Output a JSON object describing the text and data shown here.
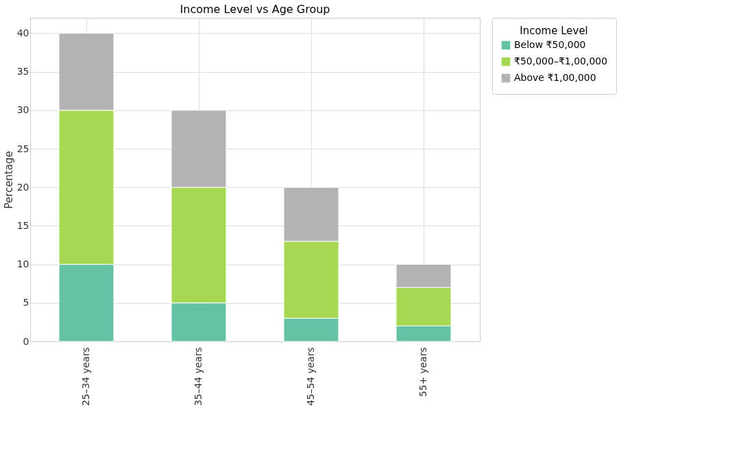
{
  "chart_data": {
    "type": "bar",
    "title": "Income Level vs Age Group",
    "ylabel": "Percentage",
    "legend_title": "Income Level",
    "categories": [
      "25–34 years",
      "35–44 years",
      "45–54 years",
      "55+ years"
    ],
    "stacked": true,
    "series": [
      {
        "name": "Below ₹50,000",
        "color": "#66c2a5",
        "values": [
          10,
          5,
          3,
          2
        ]
      },
      {
        "name": "₹50,000–₹1,00,000",
        "color": "#a6d854",
        "values": [
          20,
          15,
          10,
          5
        ]
      },
      {
        "name": "Above ₹1,00,000",
        "color": "#b3b3b3",
        "values": [
          10,
          10,
          7,
          3
        ]
      }
    ],
    "ylim": [
      0,
      42
    ],
    "yticks": [
      0,
      5,
      10,
      15,
      20,
      25,
      30,
      35,
      40
    ],
    "grid": true,
    "legend": "top right"
  }
}
